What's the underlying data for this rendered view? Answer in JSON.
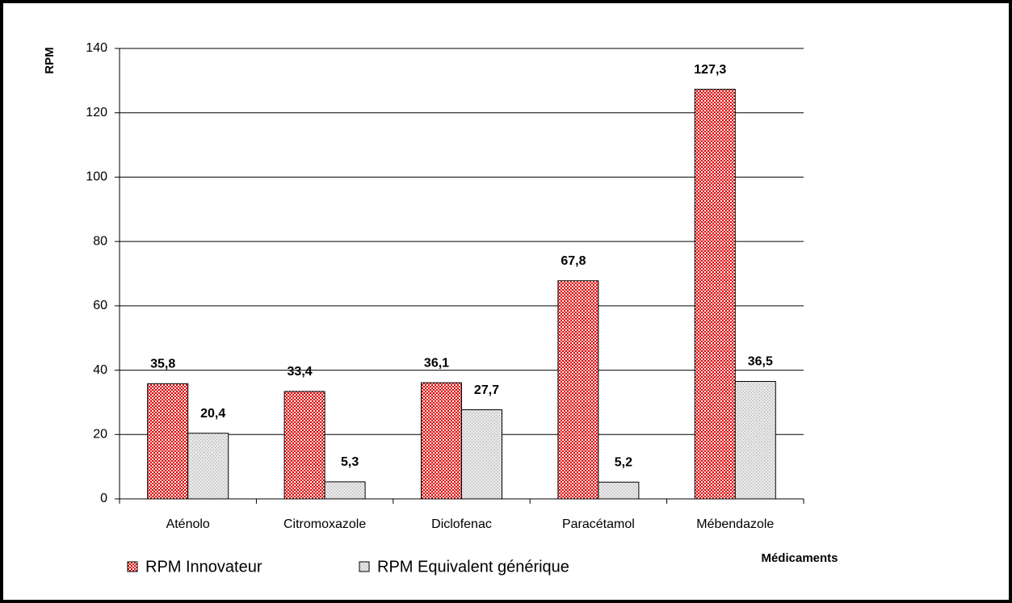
{
  "chart_data": {
    "type": "bar",
    "y_label": "RPM",
    "x_label": "Médicaments",
    "categories": [
      "Aténolo",
      "Citromoxazole",
      "Diclofenac",
      "Paracétamol",
      "Mébendazole"
    ],
    "series": [
      {
        "name": "RPM Innovateur",
        "color": "#e00000",
        "values": [
          35.8,
          33.4,
          36.1,
          67.8,
          127.3
        ],
        "value_labels": [
          "35,8",
          "33,4",
          "36,1",
          "67,8",
          "127,3"
        ]
      },
      {
        "name": "RPM Equivalent générique",
        "color": "#b0b0b0",
        "values": [
          20.4,
          5.3,
          27.7,
          5.2,
          36.5
        ],
        "value_labels": [
          "20,4",
          "5,3",
          "27,7",
          "5,2",
          "36,5"
        ]
      }
    ],
    "ylim": [
      0,
      140
    ],
    "yticks": [
      0,
      20,
      40,
      60,
      80,
      100,
      120,
      140
    ],
    "grid": true,
    "legend": "bottom-left"
  }
}
